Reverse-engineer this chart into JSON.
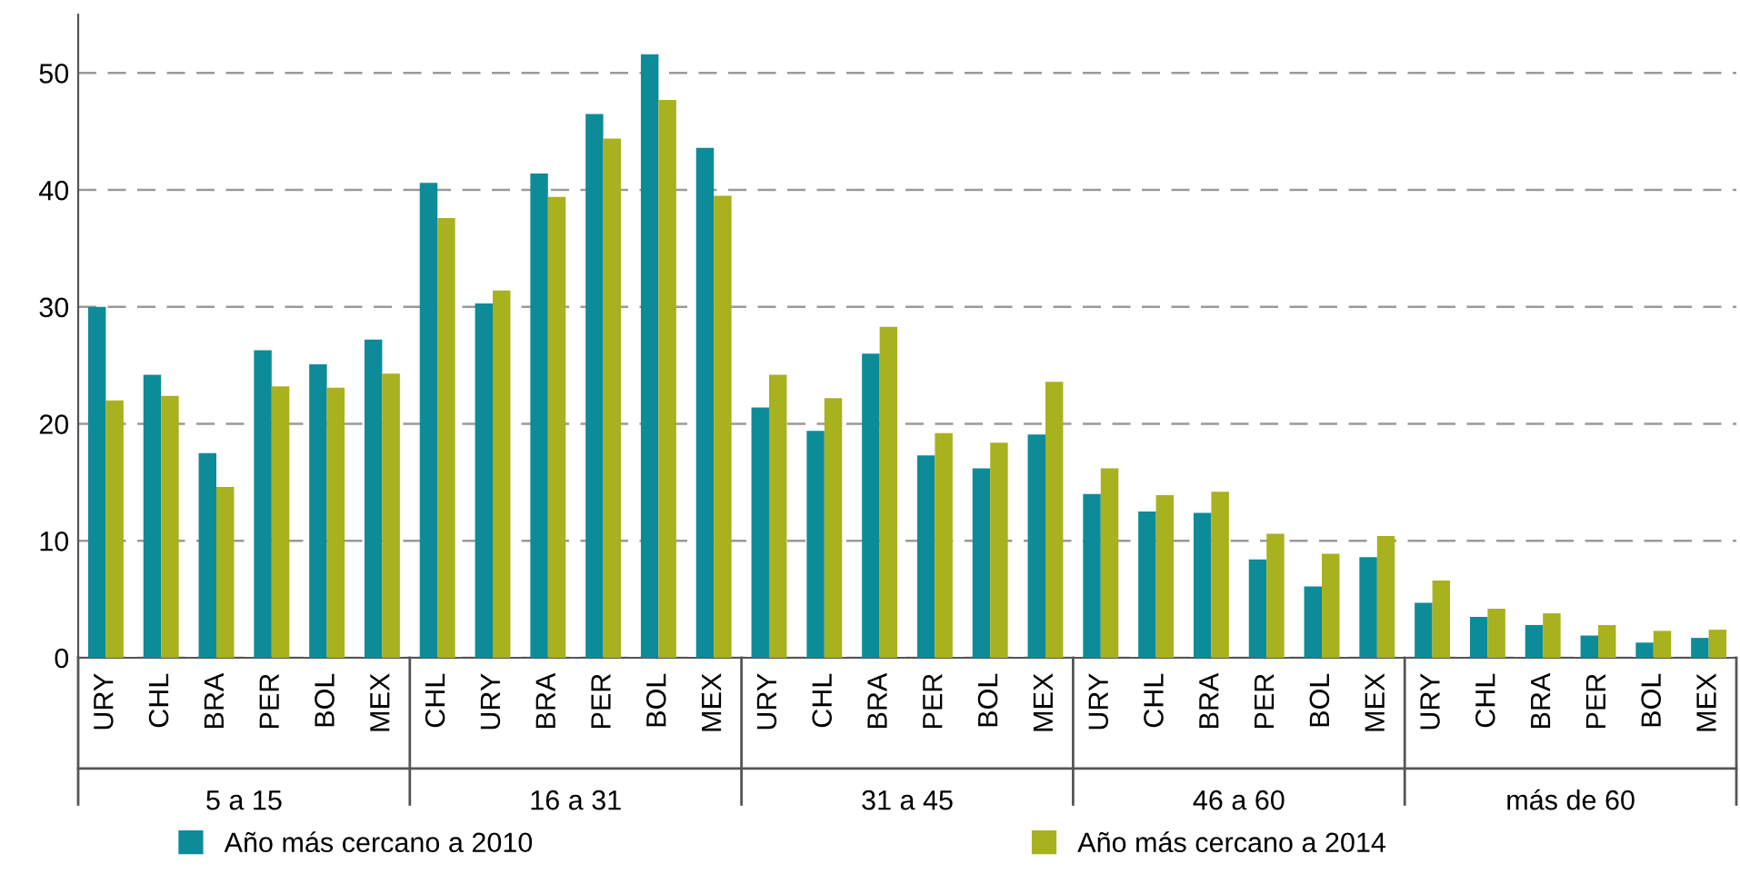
{
  "chart_data": {
    "type": "bar",
    "categories": [
      "URY",
      "CHL",
      "BRA",
      "PER",
      "BOL",
      "MEX",
      "CHL",
      "URY",
      "BRA",
      "PER",
      "BOL",
      "MEX",
      "URY",
      "CHL",
      "BRA",
      "PER",
      "BOL",
      "MEX",
      "URY",
      "CHL",
      "BRA",
      "PER",
      "BOL",
      "MEX",
      "URY",
      "CHL",
      "BRA",
      "PER",
      "BOL",
      "MEX"
    ],
    "series": [
      {
        "name": "Año más cercano a 2010",
        "color": "#0e8b98",
        "values": [
          30.0,
          24.2,
          17.5,
          26.3,
          25.1,
          27.2,
          40.6,
          30.3,
          41.4,
          46.5,
          51.6,
          43.6,
          21.4,
          19.4,
          26.0,
          17.3,
          16.2,
          19.1,
          14.0,
          12.5,
          12.4,
          8.4,
          6.1,
          8.6,
          4.7,
          3.5,
          2.8,
          1.9,
          1.3,
          1.7
        ]
      },
      {
        "name": "Año más cercano a 2014",
        "color": "#a8b11e",
        "values": [
          22.0,
          22.4,
          14.6,
          23.2,
          23.1,
          24.3,
          37.6,
          31.4,
          39.4,
          44.4,
          47.7,
          39.5,
          24.2,
          22.2,
          28.3,
          19.2,
          18.4,
          23.6,
          16.2,
          13.9,
          14.2,
          10.6,
          8.9,
          10.4,
          6.6,
          4.2,
          3.8,
          2.8,
          2.3,
          2.4
        ]
      }
    ],
    "annotations": [
      "5 a 15",
      "16 a 31",
      "31 a 45",
      "46 a 60",
      "más de 60"
    ],
    "ylim": [
      0,
      55
    ],
    "yticks": [
      0,
      10,
      20,
      30,
      40,
      50
    ],
    "grid": "y",
    "legend": "bottom"
  }
}
